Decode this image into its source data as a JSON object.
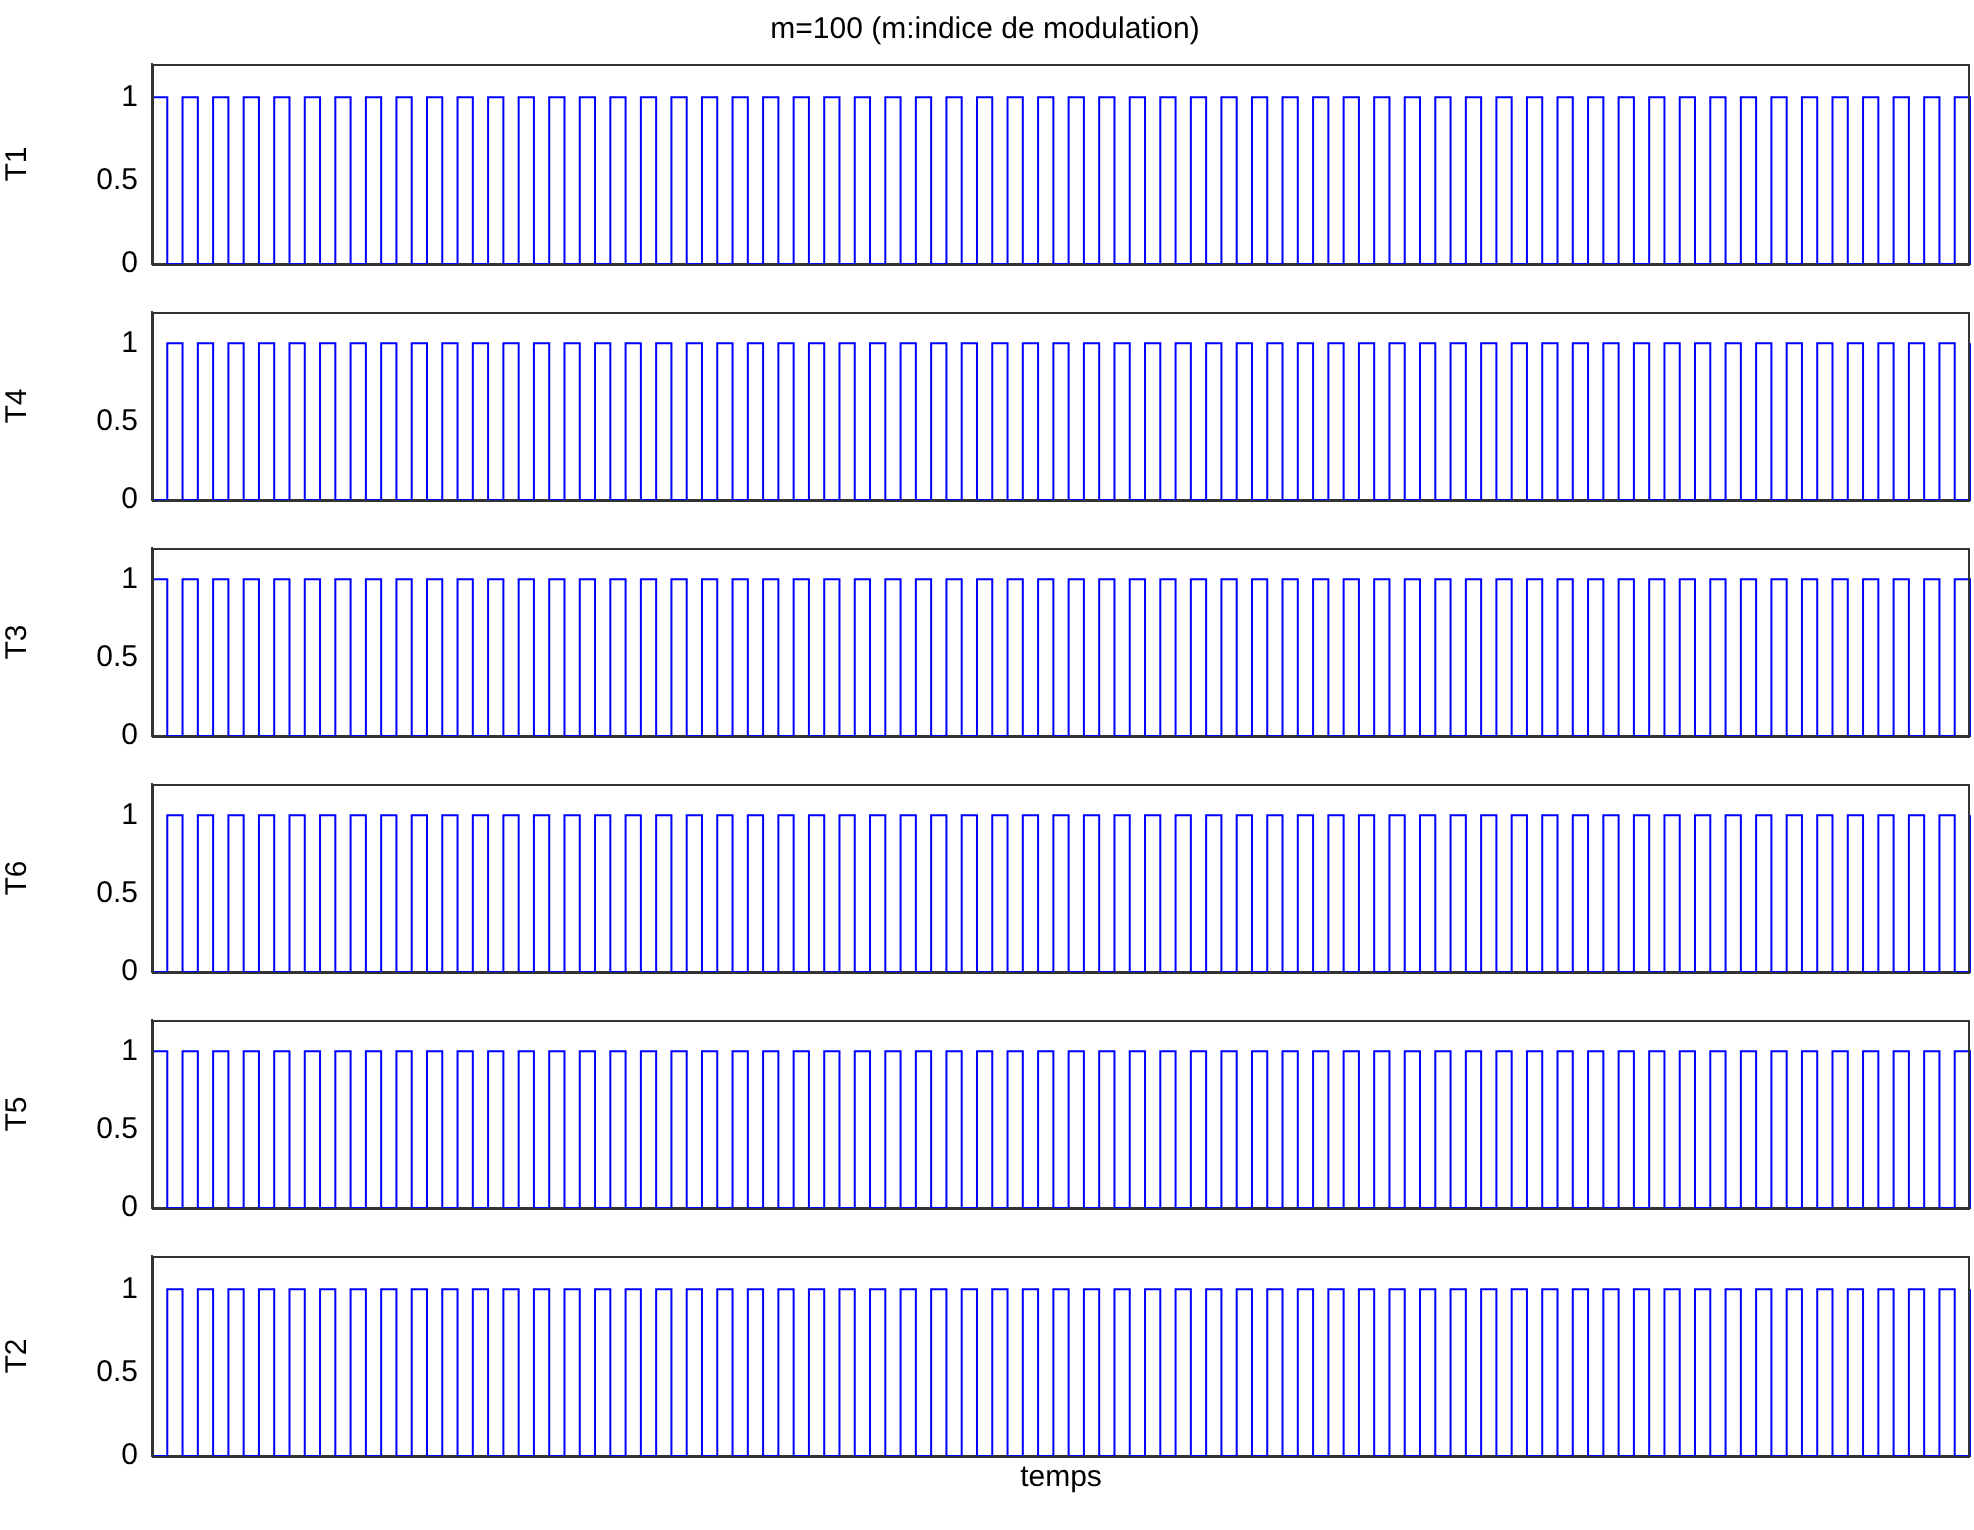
{
  "chart_data": [
    {
      "type": "step",
      "title": "m=100 (m:indice de modulation)",
      "ylabel": "T1",
      "categories": [
        null,
        null,
        null,
        null,
        null,
        null,
        null,
        null,
        null,
        null,
        null,
        null,
        null,
        null,
        null,
        null,
        null,
        null,
        null,
        null,
        null,
        null,
        null,
        null,
        null,
        null,
        null,
        null,
        null,
        null,
        null,
        null,
        null,
        null,
        null,
        null,
        null,
        null,
        null,
        null,
        null,
        null,
        null,
        null,
        null,
        null,
        null,
        null,
        null,
        null,
        null,
        null,
        null,
        null,
        null,
        null,
        null,
        null,
        null,
        null,
        null,
        null,
        null,
        null,
        null,
        null,
        null,
        null,
        null,
        null,
        null,
        null,
        null,
        null,
        null,
        null,
        null,
        null,
        null,
        null,
        null,
        null,
        null,
        null,
        null,
        null,
        null,
        null,
        null,
        null,
        null,
        null,
        null,
        null,
        null,
        null,
        null,
        null,
        null,
        null,
        null,
        null,
        null,
        null,
        null,
        null,
        null,
        null,
        null,
        null,
        null,
        null,
        null,
        null,
        null,
        null,
        null,
        null,
        null,
        null
      ],
      "series": [
        {
          "color": "#0000ff",
          "values": [
            1,
            0,
            1,
            0,
            1,
            0,
            1,
            0,
            1,
            0,
            1,
            0,
            1,
            0,
            1,
            0,
            1,
            0,
            1,
            0,
            1,
            0,
            1,
            0,
            1,
            0,
            1,
            0,
            1,
            0,
            1,
            0,
            1,
            0,
            1,
            0,
            1,
            0,
            1,
            0,
            1,
            0,
            1,
            0,
            1,
            0,
            1,
            0,
            1,
            0,
            1,
            0,
            1,
            0,
            1,
            0,
            1,
            0,
            1,
            0,
            1,
            0,
            1,
            0,
            1,
            0,
            1,
            0,
            1,
            0,
            1,
            0,
            1,
            0,
            1,
            0,
            1,
            0,
            1,
            0,
            1,
            0,
            1,
            0,
            1,
            0,
            1,
            0,
            1,
            0,
            1,
            0,
            1,
            0,
            1,
            0,
            1,
            0,
            1,
            0,
            1,
            0,
            1,
            0,
            1,
            0,
            1,
            0,
            1,
            0,
            1,
            0,
            1,
            0,
            1,
            0,
            1,
            0,
            1,
            0
          ]
        }
      ],
      "ylim": [
        0,
        1.2
      ],
      "yticks": [
        0,
        0.5,
        1
      ],
      "tick_labels": "y"
    },
    {
      "type": "step",
      "ylabel": "T4",
      "categories": [
        null,
        null,
        null,
        null,
        null,
        null,
        null,
        null,
        null,
        null,
        null,
        null,
        null,
        null,
        null,
        null,
        null,
        null,
        null,
        null,
        null,
        null,
        null,
        null,
        null,
        null,
        null,
        null,
        null,
        null,
        null,
        null,
        null,
        null,
        null,
        null,
        null,
        null,
        null,
        null,
        null,
        null,
        null,
        null,
        null,
        null,
        null,
        null,
        null,
        null,
        null,
        null,
        null,
        null,
        null,
        null,
        null,
        null,
        null,
        null,
        null,
        null,
        null,
        null,
        null,
        null,
        null,
        null,
        null,
        null,
        null,
        null,
        null,
        null,
        null,
        null,
        null,
        null,
        null,
        null,
        null,
        null,
        null,
        null,
        null,
        null,
        null,
        null,
        null,
        null,
        null,
        null,
        null,
        null,
        null,
        null,
        null,
        null,
        null,
        null,
        null,
        null,
        null,
        null,
        null,
        null,
        null,
        null,
        null,
        null,
        null,
        null,
        null,
        null,
        null,
        null,
        null,
        null,
        null,
        null
      ],
      "series": [
        {
          "color": "#0000ff",
          "values": [
            0,
            1,
            0,
            1,
            0,
            1,
            0,
            1,
            0,
            1,
            0,
            1,
            0,
            1,
            0,
            1,
            0,
            1,
            0,
            1,
            0,
            1,
            0,
            1,
            0,
            1,
            0,
            1,
            0,
            1,
            0,
            1,
            0,
            1,
            0,
            1,
            0,
            1,
            0,
            1,
            0,
            1,
            0,
            1,
            0,
            1,
            0,
            1,
            0,
            1,
            0,
            1,
            0,
            1,
            0,
            1,
            0,
            1,
            0,
            1,
            0,
            1,
            0,
            1,
            0,
            1,
            0,
            1,
            0,
            1,
            0,
            1,
            0,
            1,
            0,
            1,
            0,
            1,
            0,
            1,
            0,
            1,
            0,
            1,
            0,
            1,
            0,
            1,
            0,
            1,
            0,
            1,
            0,
            1,
            0,
            1,
            0,
            1,
            0,
            1,
            0,
            1,
            0,
            1,
            0,
            1,
            0,
            1,
            0,
            1,
            0,
            1,
            0,
            1,
            0,
            1,
            0,
            1,
            0,
            1
          ]
        }
      ],
      "ylim": [
        0,
        1.2
      ],
      "yticks": [
        0,
        0.5,
        1
      ],
      "tick_labels": "y"
    },
    {
      "type": "step",
      "ylabel": "T3",
      "categories": [
        null,
        null,
        null,
        null,
        null,
        null,
        null,
        null,
        null,
        null,
        null,
        null,
        null,
        null,
        null,
        null,
        null,
        null,
        null,
        null,
        null,
        null,
        null,
        null,
        null,
        null,
        null,
        null,
        null,
        null,
        null,
        null,
        null,
        null,
        null,
        null,
        null,
        null,
        null,
        null,
        null,
        null,
        null,
        null,
        null,
        null,
        null,
        null,
        null,
        null,
        null,
        null,
        null,
        null,
        null,
        null,
        null,
        null,
        null,
        null,
        null,
        null,
        null,
        null,
        null,
        null,
        null,
        null,
        null,
        null,
        null,
        null,
        null,
        null,
        null,
        null,
        null,
        null,
        null,
        null,
        null,
        null,
        null,
        null,
        null,
        null,
        null,
        null,
        null,
        null,
        null,
        null,
        null,
        null,
        null,
        null,
        null,
        null,
        null,
        null,
        null,
        null,
        null,
        null,
        null,
        null,
        null,
        null,
        null,
        null,
        null,
        null,
        null,
        null,
        null,
        null,
        null,
        null,
        null,
        null
      ],
      "series": [
        {
          "color": "#0000ff",
          "values": [
            1,
            0,
            1,
            0,
            1,
            0,
            1,
            0,
            1,
            0,
            1,
            0,
            1,
            0,
            1,
            0,
            1,
            0,
            1,
            0,
            1,
            0,
            1,
            0,
            1,
            0,
            1,
            0,
            1,
            0,
            1,
            0,
            1,
            0,
            1,
            0,
            1,
            0,
            1,
            0,
            1,
            0,
            1,
            0,
            1,
            0,
            1,
            0,
            1,
            0,
            1,
            0,
            1,
            0,
            1,
            0,
            1,
            0,
            1,
            0,
            1,
            0,
            1,
            0,
            1,
            0,
            1,
            0,
            1,
            0,
            1,
            0,
            1,
            0,
            1,
            0,
            1,
            0,
            1,
            0,
            1,
            0,
            1,
            0,
            1,
            0,
            1,
            0,
            1,
            0,
            1,
            0,
            1,
            0,
            1,
            0,
            1,
            0,
            1,
            0,
            1,
            0,
            1,
            0,
            1,
            0,
            1,
            0,
            1,
            0,
            1,
            0,
            1,
            0,
            1,
            0,
            1,
            0,
            1,
            0
          ]
        }
      ],
      "ylim": [
        0,
        1.2
      ],
      "yticks": [
        0,
        0.5,
        1
      ],
      "tick_labels": "y"
    },
    {
      "type": "step",
      "ylabel": "T6",
      "categories": [
        null,
        null,
        null,
        null,
        null,
        null,
        null,
        null,
        null,
        null,
        null,
        null,
        null,
        null,
        null,
        null,
        null,
        null,
        null,
        null,
        null,
        null,
        null,
        null,
        null,
        null,
        null,
        null,
        null,
        null,
        null,
        null,
        null,
        null,
        null,
        null,
        null,
        null,
        null,
        null,
        null,
        null,
        null,
        null,
        null,
        null,
        null,
        null,
        null,
        null,
        null,
        null,
        null,
        null,
        null,
        null,
        null,
        null,
        null,
        null,
        null,
        null,
        null,
        null,
        null,
        null,
        null,
        null,
        null,
        null,
        null,
        null,
        null,
        null,
        null,
        null,
        null,
        null,
        null,
        null,
        null,
        null,
        null,
        null,
        null,
        null,
        null,
        null,
        null,
        null,
        null,
        null,
        null,
        null,
        null,
        null,
        null,
        null,
        null,
        null,
        null,
        null,
        null,
        null,
        null,
        null,
        null,
        null,
        null,
        null,
        null,
        null,
        null,
        null,
        null,
        null,
        null,
        null,
        null,
        null
      ],
      "series": [
        {
          "color": "#0000ff",
          "values": [
            0,
            1,
            0,
            1,
            0,
            1,
            0,
            1,
            0,
            1,
            0,
            1,
            0,
            1,
            0,
            1,
            0,
            1,
            0,
            1,
            0,
            1,
            0,
            1,
            0,
            1,
            0,
            1,
            0,
            1,
            0,
            1,
            0,
            1,
            0,
            1,
            0,
            1,
            0,
            1,
            0,
            1,
            0,
            1,
            0,
            1,
            0,
            1,
            0,
            1,
            0,
            1,
            0,
            1,
            0,
            1,
            0,
            1,
            0,
            1,
            0,
            1,
            0,
            1,
            0,
            1,
            0,
            1,
            0,
            1,
            0,
            1,
            0,
            1,
            0,
            1,
            0,
            1,
            0,
            1,
            0,
            1,
            0,
            1,
            0,
            1,
            0,
            1,
            0,
            1,
            0,
            1,
            0,
            1,
            0,
            1,
            0,
            1,
            0,
            1,
            0,
            1,
            0,
            1,
            0,
            1,
            0,
            1,
            0,
            1,
            0,
            1,
            0,
            1,
            0,
            1,
            0,
            1,
            0,
            1
          ]
        }
      ],
      "ylim": [
        0,
        1.2
      ],
      "yticks": [
        0,
        0.5,
        1
      ],
      "tick_labels": "y"
    },
    {
      "type": "step",
      "ylabel": "T5",
      "categories": [
        null,
        null,
        null,
        null,
        null,
        null,
        null,
        null,
        null,
        null,
        null,
        null,
        null,
        null,
        null,
        null,
        null,
        null,
        null,
        null,
        null,
        null,
        null,
        null,
        null,
        null,
        null,
        null,
        null,
        null,
        null,
        null,
        null,
        null,
        null,
        null,
        null,
        null,
        null,
        null,
        null,
        null,
        null,
        null,
        null,
        null,
        null,
        null,
        null,
        null,
        null,
        null,
        null,
        null,
        null,
        null,
        null,
        null,
        null,
        null,
        null,
        null,
        null,
        null,
        null,
        null,
        null,
        null,
        null,
        null,
        null,
        null,
        null,
        null,
        null,
        null,
        null,
        null,
        null,
        null,
        null,
        null,
        null,
        null,
        null,
        null,
        null,
        null,
        null,
        null,
        null,
        null,
        null,
        null,
        null,
        null,
        null,
        null,
        null,
        null,
        null,
        null,
        null,
        null,
        null,
        null,
        null,
        null,
        null,
        null,
        null,
        null,
        null,
        null,
        null,
        null,
        null,
        null,
        null,
        null
      ],
      "series": [
        {
          "color": "#0000ff",
          "values": [
            1,
            0,
            1,
            0,
            1,
            0,
            1,
            0,
            1,
            0,
            1,
            0,
            1,
            0,
            1,
            0,
            1,
            0,
            1,
            0,
            1,
            0,
            1,
            0,
            1,
            0,
            1,
            0,
            1,
            0,
            1,
            0,
            1,
            0,
            1,
            0,
            1,
            0,
            1,
            0,
            1,
            0,
            1,
            0,
            1,
            0,
            1,
            0,
            1,
            0,
            1,
            0,
            1,
            0,
            1,
            0,
            1,
            0,
            1,
            0,
            1,
            0,
            1,
            0,
            1,
            0,
            1,
            0,
            1,
            0,
            1,
            0,
            1,
            0,
            1,
            0,
            1,
            0,
            1,
            0,
            1,
            0,
            1,
            0,
            1,
            0,
            1,
            0,
            1,
            0,
            1,
            0,
            1,
            0,
            1,
            0,
            1,
            0,
            1,
            0,
            1,
            0,
            1,
            0,
            1,
            0,
            1,
            0,
            1,
            0,
            1,
            0,
            1,
            0,
            1,
            0,
            1,
            0,
            1,
            0
          ]
        }
      ],
      "ylim": [
        0,
        1.2
      ],
      "yticks": [
        0,
        0.5,
        1
      ],
      "tick_labels": "y"
    },
    {
      "type": "step",
      "ylabel": "T2",
      "xlabel": "temps",
      "categories": [
        null,
        null,
        null,
        null,
        null,
        null,
        null,
        null,
        null,
        null,
        null,
        null,
        null,
        null,
        null,
        null,
        null,
        null,
        null,
        null,
        null,
        null,
        null,
        null,
        null,
        null,
        null,
        null,
        null,
        null,
        null,
        null,
        null,
        null,
        null,
        null,
        null,
        null,
        null,
        null,
        null,
        null,
        null,
        null,
        null,
        null,
        null,
        null,
        null,
        null,
        null,
        null,
        null,
        null,
        null,
        null,
        null,
        null,
        null,
        null,
        null,
        null,
        null,
        null,
        null,
        null,
        null,
        null,
        null,
        null,
        null,
        null,
        null,
        null,
        null,
        null,
        null,
        null,
        null,
        null,
        null,
        null,
        null,
        null,
        null,
        null,
        null,
        null,
        null,
        null,
        null,
        null,
        null,
        null,
        null,
        null,
        null,
        null,
        null,
        null,
        null,
        null,
        null,
        null,
        null,
        null,
        null,
        null,
        null,
        null,
        null,
        null,
        null,
        null,
        null,
        null,
        null,
        null,
        null,
        null
      ],
      "series": [
        {
          "color": "#0000ff",
          "values": [
            0,
            1,
            0,
            1,
            0,
            1,
            0,
            1,
            0,
            1,
            0,
            1,
            0,
            1,
            0,
            1,
            0,
            1,
            0,
            1,
            0,
            1,
            0,
            1,
            0,
            1,
            0,
            1,
            0,
            1,
            0,
            1,
            0,
            1,
            0,
            1,
            0,
            1,
            0,
            1,
            0,
            1,
            0,
            1,
            0,
            1,
            0,
            1,
            0,
            1,
            0,
            1,
            0,
            1,
            0,
            1,
            0,
            1,
            0,
            1,
            0,
            1,
            0,
            1,
            0,
            1,
            0,
            1,
            0,
            1,
            0,
            1,
            0,
            1,
            0,
            1,
            0,
            1,
            0,
            1,
            0,
            1,
            0,
            1,
            0,
            1,
            0,
            1,
            0,
            1,
            0,
            1,
            0,
            1,
            0,
            1,
            0,
            1,
            0,
            1,
            0,
            1,
            0,
            1,
            0,
            1,
            0,
            1,
            0,
            1,
            0,
            1,
            0,
            1,
            0,
            1,
            0,
            1,
            0,
            1
          ]
        }
      ],
      "ylim": [
        0,
        1.2
      ],
      "yticks": [
        0,
        0.5,
        1
      ],
      "tick_labels": "y"
    }
  ]
}
